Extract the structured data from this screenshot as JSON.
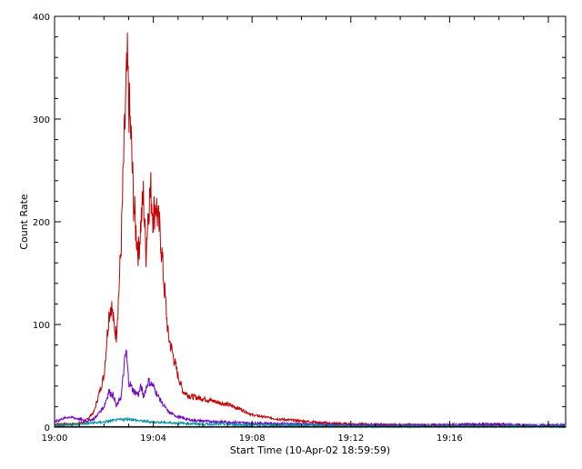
{
  "chart_data": {
    "type": "line",
    "title": "",
    "xlabel": "Start Time (10-Apr-02 18:59:59)",
    "ylabel": "Count Rate",
    "x_unit": "minutes after 19:00",
    "xlim": [
      0,
      20.7
    ],
    "ylim": [
      0,
      400
    ],
    "x_ticks": [
      {
        "value": 0,
        "label": "19:00"
      },
      {
        "value": 4,
        "label": "19:04"
      },
      {
        "value": 8,
        "label": "19:08"
      },
      {
        "value": 12,
        "label": "19:12"
      },
      {
        "value": 16,
        "label": "19:16"
      }
    ],
    "y_ticks": [
      {
        "value": 0,
        "label": "0"
      },
      {
        "value": 100,
        "label": "100"
      },
      {
        "value": 200,
        "label": "200"
      },
      {
        "value": 300,
        "label": "300"
      },
      {
        "value": 400,
        "label": "400"
      }
    ],
    "grid": false,
    "legend": "none",
    "series": [
      {
        "color": "#c00000",
        "points": [
          [
            0,
            3
          ],
          [
            0.8,
            3
          ],
          [
            1.2,
            5
          ],
          [
            1.6,
            15
          ],
          [
            2.0,
            50
          ],
          [
            2.2,
            110
          ],
          [
            2.3,
            120
          ],
          [
            2.4,
            100
          ],
          [
            2.5,
            90
          ],
          [
            2.6,
            130
          ],
          [
            2.7,
            180
          ],
          [
            2.8,
            260
          ],
          [
            2.9,
            330
          ],
          [
            2.95,
            350
          ],
          [
            3.0,
            320
          ],
          [
            3.1,
            280
          ],
          [
            3.2,
            220
          ],
          [
            3.3,
            190
          ],
          [
            3.4,
            170
          ],
          [
            3.5,
            200
          ],
          [
            3.6,
            225
          ],
          [
            3.7,
            170
          ],
          [
            3.8,
            215
          ],
          [
            3.9,
            230
          ],
          [
            4.0,
            205
          ],
          [
            4.1,
            220
          ],
          [
            4.2,
            200
          ],
          [
            4.3,
            185
          ],
          [
            4.4,
            150
          ],
          [
            4.5,
            120
          ],
          [
            4.6,
            90
          ],
          [
            4.8,
            70
          ],
          [
            5.0,
            50
          ],
          [
            5.2,
            35
          ],
          [
            5.5,
            30
          ],
          [
            6.0,
            28
          ],
          [
            6.5,
            25
          ],
          [
            7.0,
            22
          ],
          [
            7.5,
            18
          ],
          [
            8.0,
            12
          ],
          [
            8.5,
            10
          ],
          [
            9.0,
            8
          ],
          [
            10.0,
            6
          ],
          [
            11.0,
            4
          ],
          [
            12.0,
            3
          ],
          [
            14.0,
            2
          ],
          [
            16.0,
            2
          ],
          [
            18.0,
            2
          ],
          [
            20.0,
            1
          ],
          [
            20.7,
            1
          ]
        ]
      },
      {
        "color": "#7000c8",
        "points": [
          [
            0,
            5
          ],
          [
            0.3,
            8
          ],
          [
            0.6,
            10
          ],
          [
            1.0,
            8
          ],
          [
            1.3,
            6
          ],
          [
            1.6,
            8
          ],
          [
            2.0,
            20
          ],
          [
            2.2,
            35
          ],
          [
            2.4,
            30
          ],
          [
            2.5,
            20
          ],
          [
            2.7,
            30
          ],
          [
            2.8,
            55
          ],
          [
            2.9,
            75
          ],
          [
            3.0,
            45
          ],
          [
            3.2,
            35
          ],
          [
            3.4,
            32
          ],
          [
            3.5,
            40
          ],
          [
            3.6,
            30
          ],
          [
            3.8,
            45
          ],
          [
            4.0,
            40
          ],
          [
            4.2,
            30
          ],
          [
            4.4,
            22
          ],
          [
            4.6,
            15
          ],
          [
            5.0,
            10
          ],
          [
            5.5,
            7
          ],
          [
            6.0,
            6
          ],
          [
            7.0,
            5
          ],
          [
            8.0,
            4
          ],
          [
            10.0,
            3
          ],
          [
            12.0,
            2
          ],
          [
            14.0,
            2
          ],
          [
            16.0,
            2
          ],
          [
            17.0,
            3
          ],
          [
            18.0,
            3
          ],
          [
            19.0,
            2
          ],
          [
            20.0,
            2
          ],
          [
            20.7,
            2
          ]
        ]
      },
      {
        "color": "#0090a0",
        "points": [
          [
            0,
            2
          ],
          [
            1.0,
            3
          ],
          [
            1.5,
            4
          ],
          [
            2.0,
            5
          ],
          [
            2.5,
            7
          ],
          [
            3.0,
            8
          ],
          [
            3.5,
            6
          ],
          [
            4.0,
            5
          ],
          [
            5.0,
            4
          ],
          [
            6.0,
            3
          ],
          [
            7.0,
            3
          ],
          [
            8.0,
            2
          ],
          [
            10.0,
            2
          ],
          [
            12.0,
            1
          ],
          [
            16.0,
            1
          ],
          [
            20.7,
            1
          ]
        ]
      },
      {
        "color": "#000000",
        "points": [
          [
            0,
            0.5
          ],
          [
            5.0,
            0.5
          ],
          [
            10.0,
            0.5
          ],
          [
            15.0,
            0.5
          ],
          [
            20.7,
            0.5
          ]
        ]
      }
    ]
  }
}
